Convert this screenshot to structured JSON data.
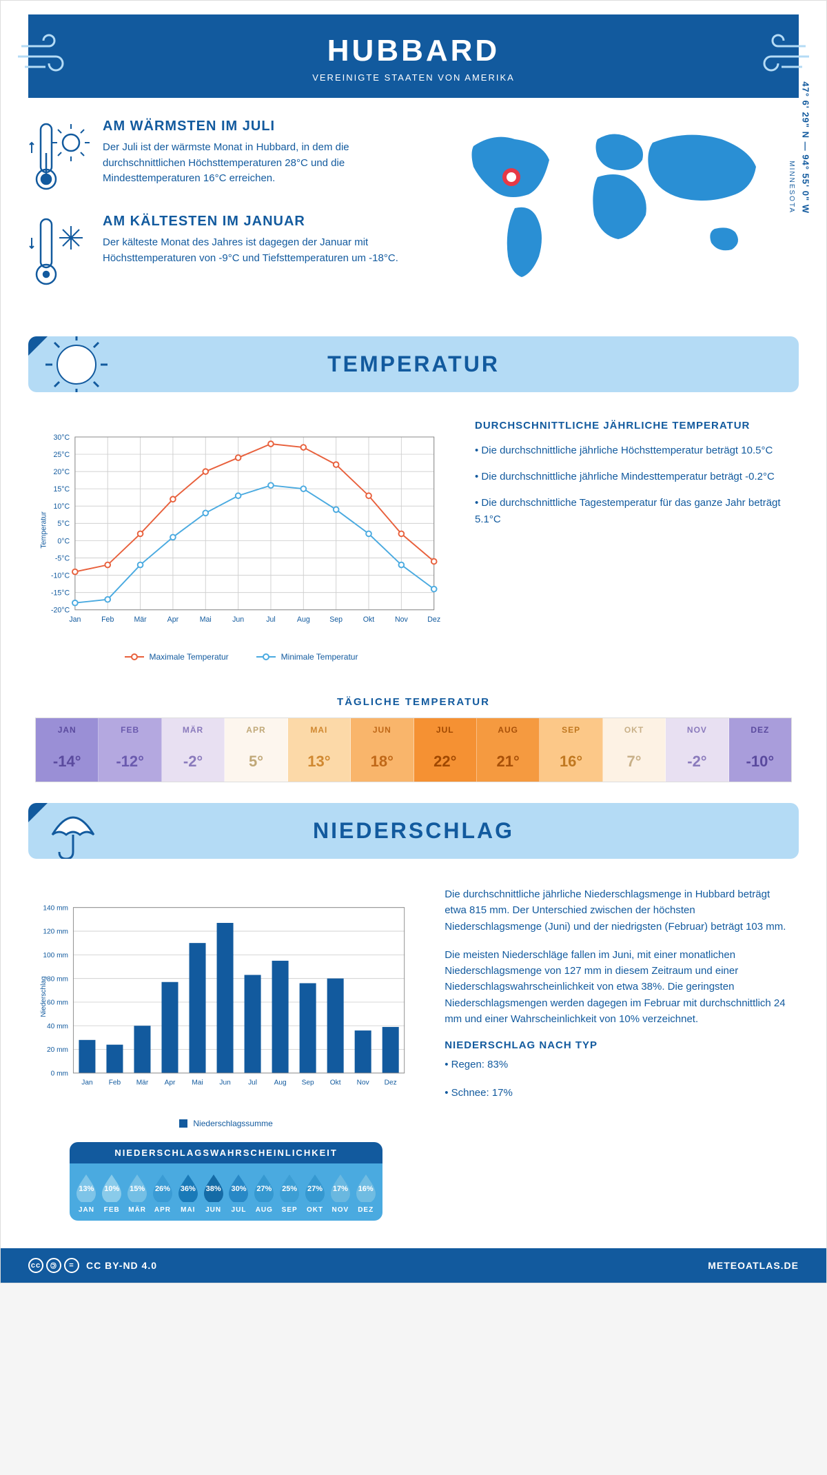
{
  "header": {
    "title": "HUBBARD",
    "subtitle": "VEREINIGTE STAATEN VON AMERIKA"
  },
  "location": {
    "coords": "47° 6' 29\" N — 94° 55' 0\" W",
    "state": "MINNESOTA",
    "marker_color": "#e63946"
  },
  "colors": {
    "primary": "#125a9e",
    "light_blue": "#b4dbf5",
    "accent_blue": "#4aaae0",
    "map_blue": "#2a8fd4",
    "line_max": "#e8603c",
    "line_min": "#4aaae0",
    "bar": "#125a9e"
  },
  "facts": {
    "warm": {
      "title": "AM WÄRMSTEN IM JULI",
      "text": "Der Juli ist der wärmste Monat in Hubbard, in dem die durchschnittlichen Höchsttemperaturen 28°C und die Mindesttemperaturen 16°C erreichen."
    },
    "cold": {
      "title": "AM KÄLTESTEN IM JANUAR",
      "text": "Der kälteste Monat des Jahres ist dagegen der Januar mit Höchsttemperaturen von -9°C und Tiefsttemperaturen um -18°C."
    }
  },
  "temp_section": {
    "banner": "TEMPERATUR",
    "chart": {
      "type": "line",
      "months": [
        "Jan",
        "Feb",
        "Mär",
        "Apr",
        "Mai",
        "Jun",
        "Jul",
        "Aug",
        "Sep",
        "Okt",
        "Nov",
        "Dez"
      ],
      "max_values": [
        -9,
        -7,
        2,
        12,
        20,
        24,
        28,
        27,
        22,
        13,
        2,
        -6
      ],
      "min_values": [
        -18,
        -17,
        -7,
        1,
        8,
        13,
        16,
        15,
        9,
        2,
        -7,
        -14
      ],
      "ylim": [
        -20,
        30
      ],
      "ytick_step": 5,
      "y_label": "Temperatur",
      "max_color": "#e8603c",
      "min_color": "#4aaae0",
      "grid_color": "#d0d0d0",
      "line_width": 2,
      "marker_size": 4,
      "legend_max": "Maximale Temperatur",
      "legend_min": "Minimale Temperatur"
    },
    "info": {
      "heading": "DURCHSCHNITTLICHE JÄHRLICHE TEMPERATUR",
      "bullet1": "• Die durchschnittliche jährliche Höchsttemperatur beträgt 10.5°C",
      "bullet2": "• Die durchschnittliche jährliche Mindesttemperatur beträgt -0.2°C",
      "bullet3": "• Die durchschnittliche Tagestemperatur für das ganze Jahr beträgt 5.1°C"
    },
    "daily": {
      "title": "TÄGLICHE TEMPERATUR",
      "months": [
        "JAN",
        "FEB",
        "MÄR",
        "APR",
        "MAI",
        "JUN",
        "JUL",
        "AUG",
        "SEP",
        "OKT",
        "NOV",
        "DEZ"
      ],
      "values": [
        "-14°",
        "-12°",
        "-2°",
        "5°",
        "13°",
        "18°",
        "22°",
        "21°",
        "16°",
        "7°",
        "-2°",
        "-10°"
      ],
      "bg_colors": [
        "#9a8fd6",
        "#b4a8e0",
        "#e8e0f2",
        "#fdf6ee",
        "#fcd9a8",
        "#f9b56b",
        "#f59133",
        "#f59a40",
        "#fcc888",
        "#fdf2e4",
        "#e8e0f2",
        "#a99ddb"
      ],
      "text_colors": [
        "#5a4a9e",
        "#6a5aae",
        "#8a7abc",
        "#c0a878",
        "#d08830",
        "#c06818",
        "#a04800",
        "#a85008",
        "#c07820",
        "#c8b088",
        "#8a7abc",
        "#5a4a9e"
      ]
    }
  },
  "precip_section": {
    "banner": "NIEDERSCHLAG",
    "chart": {
      "type": "bar",
      "months": [
        "Jan",
        "Feb",
        "Mär",
        "Apr",
        "Mai",
        "Jun",
        "Jul",
        "Aug",
        "Sep",
        "Okt",
        "Nov",
        "Dez"
      ],
      "values": [
        28,
        24,
        40,
        77,
        110,
        127,
        83,
        95,
        76,
        80,
        36,
        39
      ],
      "ylim": [
        0,
        140
      ],
      "ytick_step": 20,
      "y_label": "Niederschlag",
      "bar_color": "#125a9e",
      "grid_color": "#d0d0d0",
      "legend": "Niederschlagssumme"
    },
    "text": {
      "p1": "Die durchschnittliche jährliche Niederschlagsmenge in Hubbard beträgt etwa 815 mm. Der Unterschied zwischen der höchsten Niederschlagsmenge (Juni) und der niedrigsten (Februar) beträgt 103 mm.",
      "p2": "Die meisten Niederschläge fallen im Juni, mit einer monatlichen Niederschlagsmenge von 127 mm in diesem Zeitraum und einer Niederschlagswahrscheinlichkeit von etwa 38%. Die geringsten Niederschlagsmengen werden dagegen im Februar mit durchschnittlich 24 mm und einer Wahrscheinlichkeit von 10% verzeichnet.",
      "type_heading": "NIEDERSCHLAG NACH TYP",
      "type1": "• Regen: 83%",
      "type2": "• Schnee: 17%"
    },
    "probability": {
      "title": "NIEDERSCHLAGSWAHRSCHEINLICHKEIT",
      "months": [
        "JAN",
        "FEB",
        "MÄR",
        "APR",
        "MAI",
        "JUN",
        "JUL",
        "AUG",
        "SEP",
        "OKT",
        "NOV",
        "DEZ"
      ],
      "values": [
        "13%",
        "10%",
        "15%",
        "26%",
        "36%",
        "38%",
        "30%",
        "27%",
        "25%",
        "27%",
        "17%",
        "16%"
      ],
      "drop_colors": [
        "#7ec4e8",
        "#8acbea",
        "#74bfe5",
        "#3a9bd4",
        "#1a7ab8",
        "#156ba6",
        "#2888c6",
        "#3598d0",
        "#3d9ed4",
        "#3598d0",
        "#6ab8e0",
        "#70bce2"
      ]
    }
  },
  "footer": {
    "license": "CC BY-ND 4.0",
    "site": "METEOATLAS.DE"
  }
}
